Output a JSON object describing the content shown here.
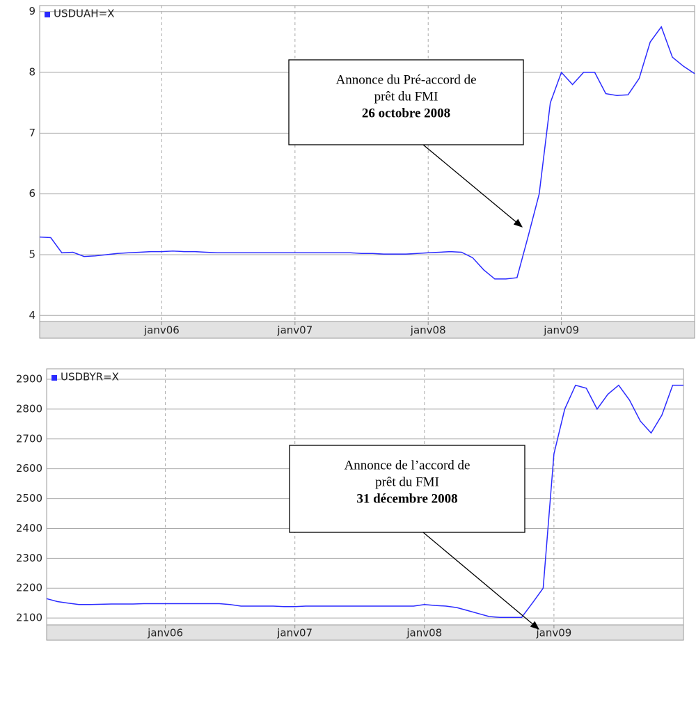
{
  "chart_data": [
    {
      "type": "line",
      "x": [
        "2005-02",
        "2005-03",
        "2005-04",
        "2005-05",
        "2005-06",
        "2005-07",
        "2005-08",
        "2005-09",
        "2005-10",
        "2005-11",
        "2005-12",
        "2006-01",
        "2006-02",
        "2006-03",
        "2006-04",
        "2006-05",
        "2006-06",
        "2006-07",
        "2006-08",
        "2006-09",
        "2006-10",
        "2006-11",
        "2006-12",
        "2007-01",
        "2007-02",
        "2007-03",
        "2007-04",
        "2007-05",
        "2007-06",
        "2007-07",
        "2007-08",
        "2007-09",
        "2007-10",
        "2007-11",
        "2007-12",
        "2008-01",
        "2008-02",
        "2008-03",
        "2008-04",
        "2008-05",
        "2008-06",
        "2008-07",
        "2008-08",
        "2008-09",
        "2008-10",
        "2008-11",
        "2008-12",
        "2009-01",
        "2009-02",
        "2009-03",
        "2009-04",
        "2009-05",
        "2009-06",
        "2009-07",
        "2009-08",
        "2009-09",
        "2009-10",
        "2009-11",
        "2009-12",
        "2010-01"
      ],
      "series": [
        {
          "name": "USDUAH=X",
          "color": "#2b2bff",
          "values": [
            5.29,
            5.28,
            5.03,
            5.04,
            4.97,
            4.98,
            5.0,
            5.02,
            5.03,
            5.04,
            5.05,
            5.05,
            5.06,
            5.05,
            5.05,
            5.04,
            5.03,
            5.03,
            5.03,
            5.03,
            5.03,
            5.03,
            5.03,
            5.03,
            5.03,
            5.03,
            5.03,
            5.03,
            5.03,
            5.02,
            5.02,
            5.01,
            5.01,
            5.01,
            5.02,
            5.03,
            5.04,
            5.05,
            5.04,
            4.95,
            4.75,
            4.6,
            4.6,
            4.62,
            5.3,
            6.0,
            7.5,
            8.0,
            7.8,
            8.0,
            8.0,
            7.65,
            7.62,
            7.63,
            7.9,
            8.5,
            8.75,
            8.25,
            8.1,
            7.98
          ]
        }
      ],
      "xlim": [
        "2005-02",
        "2010-01"
      ],
      "xticks": [
        {
          "value": "2006-01",
          "label": "janv06"
        },
        {
          "value": "2007-01",
          "label": "janv07"
        },
        {
          "value": "2008-01",
          "label": "janv08"
        },
        {
          "value": "2009-01",
          "label": "janv09"
        }
      ],
      "ylim": [
        3.9,
        9.1
      ],
      "yticks": [
        4,
        5,
        6,
        7,
        8,
        9
      ],
      "grid": true,
      "legend": "upper left",
      "annotation": {
        "lines": [
          "Annonce du Pré-accord de",
          "prêt du FMI"
        ],
        "date": "26 octobre 2008"
      }
    },
    {
      "type": "line",
      "x": [
        "2005-02",
        "2005-03",
        "2005-04",
        "2005-05",
        "2005-06",
        "2005-07",
        "2005-08",
        "2005-09",
        "2005-10",
        "2005-11",
        "2005-12",
        "2006-01",
        "2006-02",
        "2006-03",
        "2006-04",
        "2006-05",
        "2006-06",
        "2006-07",
        "2006-08",
        "2006-09",
        "2006-10",
        "2006-11",
        "2006-12",
        "2007-01",
        "2007-02",
        "2007-03",
        "2007-04",
        "2007-05",
        "2007-06",
        "2007-07",
        "2007-08",
        "2007-09",
        "2007-10",
        "2007-11",
        "2007-12",
        "2008-01",
        "2008-02",
        "2008-03",
        "2008-04",
        "2008-05",
        "2008-06",
        "2008-07",
        "2008-08",
        "2008-09",
        "2008-10",
        "2008-11",
        "2008-12",
        "2009-01",
        "2009-02",
        "2009-03",
        "2009-04",
        "2009-05",
        "2009-06",
        "2009-07",
        "2009-08",
        "2009-09",
        "2009-10",
        "2009-11",
        "2009-12",
        "2010-01"
      ],
      "series": [
        {
          "name": "USDBYR=X",
          "color": "#2b2bff",
          "values": [
            2165,
            2155,
            2150,
            2145,
            2145,
            2146,
            2147,
            2147,
            2147,
            2148,
            2148,
            2148,
            2148,
            2148,
            2148,
            2148,
            2148,
            2145,
            2140,
            2140,
            2140,
            2140,
            2138,
            2138,
            2140,
            2140,
            2140,
            2140,
            2140,
            2140,
            2140,
            2140,
            2140,
            2140,
            2140,
            2145,
            2142,
            2140,
            2135,
            2125,
            2115,
            2105,
            2102,
            2102,
            2102,
            2150,
            2200,
            2650,
            2800,
            2880,
            2870,
            2800,
            2850,
            2880,
            2830,
            2760,
            2720,
            2780,
            2880,
            2880
          ]
        }
      ],
      "xlim": [
        "2005-02",
        "2010-01"
      ],
      "xticks": [
        {
          "value": "2006-01",
          "label": "janv06"
        },
        {
          "value": "2007-01",
          "label": "janv07"
        },
        {
          "value": "2008-01",
          "label": "janv08"
        },
        {
          "value": "2009-01",
          "label": "janv09"
        }
      ],
      "ylim": [
        2077,
        2935
      ],
      "yticks": [
        2100,
        2200,
        2300,
        2400,
        2500,
        2600,
        2700,
        2800,
        2900
      ],
      "grid": true,
      "legend": "upper left",
      "annotation": {
        "lines": [
          "Annonce de l’accord de",
          "prêt du FMI"
        ],
        "date": "31 décembre 2008"
      }
    }
  ]
}
